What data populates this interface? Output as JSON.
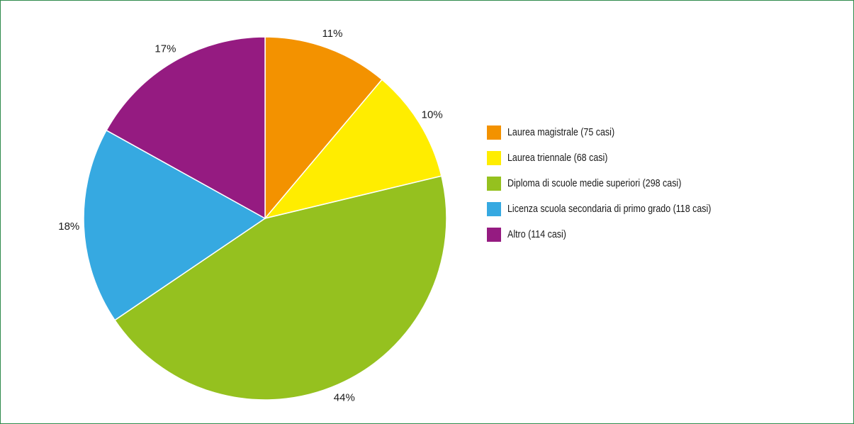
{
  "chart_data": {
    "type": "pie",
    "title": "",
    "slices": [
      {
        "label": "Laurea magistrale (75 casi)",
        "value": 75,
        "percent_label": "11%",
        "color": "#F39200"
      },
      {
        "label": "Laurea triennale (68 casi)",
        "value": 68,
        "percent_label": "10%",
        "color": "#FFED00"
      },
      {
        "label": "Diploma di scuole medie superiori (298 casi)",
        "value": 298,
        "percent_label": "44%",
        "color": "#95C11F"
      },
      {
        "label": "Licenza scuola secondaria di primo grado (118 casi)",
        "value": 118,
        "percent_label": "18%",
        "color": "#36A9E1"
      },
      {
        "label": "Altro (114 casi)",
        "value": 114,
        "percent_label": "17%",
        "color": "#951B81"
      }
    ],
    "start_angle": "12 o'clock",
    "direction": "clockwise",
    "legend_position": "right",
    "border_color": "#2F8A4C"
  }
}
